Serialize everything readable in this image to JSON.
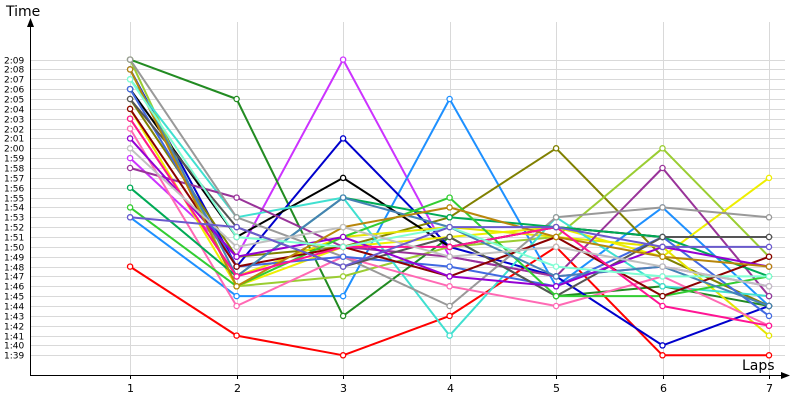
{
  "chart_data": {
    "type": "line",
    "ylabel": "Time",
    "xlabel": "Laps",
    "x": [
      1,
      2,
      3,
      4,
      5,
      6,
      7
    ],
    "xlim": [
      0.06,
      7.15
    ],
    "ylim_seconds": [
      97,
      132
    ],
    "y_ticks": [
      "1:39",
      "1:40",
      "1:41",
      "1:42",
      "1:43",
      "1:44",
      "1:45",
      "1:46",
      "1:47",
      "1:48",
      "1:49",
      "1:50",
      "1:51",
      "1:52",
      "1:53",
      "1:54",
      "1:55",
      "1:56",
      "1:57",
      "1:58",
      "1:59",
      "2:00",
      "2:01",
      "2:02",
      "2:03",
      "2:04",
      "2:05",
      "2:06",
      "2:07",
      "2:08",
      "2:09"
    ],
    "grid": true,
    "series": [
      {
        "color": "#ff0000",
        "values": [
          "1:48",
          "1:41",
          "1:39",
          "1:43",
          "1:50",
          "1:39",
          "1:39"
        ]
      },
      {
        "color": "#cc33ff",
        "values": [
          "1:59",
          "1:49",
          "2:09",
          "1:49",
          "1:47",
          "1:48",
          "1:46"
        ]
      },
      {
        "color": "#1e90ff",
        "values": [
          "1:53",
          "1:45",
          "1:45",
          "2:05",
          "1:46",
          "1:54",
          "1:44"
        ]
      },
      {
        "color": "#228b22",
        "values": [
          "2:09",
          "2:05",
          "1:43",
          "1:51",
          "1:45",
          "1:46",
          "1:44"
        ]
      },
      {
        "color": "#0000cc",
        "values": [
          "2:08",
          "1:48",
          "2:01",
          "1:50",
          "1:47",
          "1:40",
          "1:44"
        ]
      },
      {
        "color": "#808000",
        "values": [
          "2:05",
          "1:49",
          "1:50",
          "1:53",
          "2:00",
          "1:49",
          "1:44"
        ]
      },
      {
        "color": "#000000",
        "values": [
          "2:06",
          "1:51",
          "1:57",
          "1:50",
          "1:52",
          "1:51",
          "1:51"
        ]
      },
      {
        "color": "#9acd32",
        "values": [
          "2:09",
          "1:46",
          "1:47",
          "1:50",
          "1:51",
          "2:00",
          "1:49"
        ]
      },
      {
        "color": "#e5e500",
        "values": [
          "2:03",
          "1:47",
          "1:51",
          "1:52",
          "1:51",
          "1:50",
          "1:41"
        ]
      },
      {
        "color": "#eeee00",
        "values": [
          "2:04",
          "1:46",
          "1:50",
          "1:51",
          "1:52",
          "1:49",
          "1:57"
        ]
      },
      {
        "color": "#40e0d0",
        "values": [
          "2:07",
          "1:53",
          "1:55",
          "1:41",
          "1:53",
          "1:46",
          "1:45"
        ]
      },
      {
        "color": "#993399",
        "values": [
          "1:58",
          "1:55",
          "1:50",
          "1:49",
          "1:47",
          "1:58",
          "1:45"
        ]
      },
      {
        "color": "#999999",
        "values": [
          "2:09",
          "1:53",
          "1:49",
          "1:44",
          "1:53",
          "1:54",
          "1:53"
        ]
      },
      {
        "color": "#ff69b4",
        "values": [
          "2:02",
          "1:44",
          "1:49",
          "1:46",
          "1:44",
          "1:47",
          "1:42"
        ]
      },
      {
        "color": "#00aa55",
        "values": [
          "1:56",
          "1:47",
          "1:55",
          "1:53",
          "1:52",
          "1:51",
          "1:47"
        ]
      },
      {
        "color": "#4169e1",
        "values": [
          "2:06",
          "1:48",
          "1:49",
          "1:48",
          "1:46",
          "1:51",
          "1:43"
        ]
      },
      {
        "color": "#555555",
        "values": [
          "2:05",
          "1:52",
          "1:48",
          "1:51",
          "1:45",
          "1:51",
          "1:51"
        ]
      },
      {
        "color": "#32cd32",
        "values": [
          "1:54",
          "1:46",
          "1:51",
          "1:55",
          "1:45",
          "1:45",
          "1:47"
        ]
      },
      {
        "color": "#8b0000",
        "values": [
          "2:04",
          "1:48",
          "1:50",
          "1:47",
          "1:51",
          "1:45",
          "1:49"
        ]
      },
      {
        "color": "#4682b4",
        "values": [
          "2:08",
          "1:47",
          "1:55",
          "1:52",
          "1:47",
          "1:48",
          "1:44"
        ]
      },
      {
        "color": "#9400d3",
        "values": [
          "2:01",
          "1:49",
          "1:51",
          "1:47",
          "1:46",
          "1:50",
          "1:48"
        ]
      },
      {
        "color": "#b8860b",
        "values": [
          "2:08",
          "1:46",
          "1:52",
          "1:54",
          "1:51",
          "1:49",
          "1:48"
        ]
      },
      {
        "color": "#ff1493",
        "values": [
          "2:03",
          "1:47",
          "1:50",
          "1:50",
          "1:52",
          "1:44",
          "1:42"
        ]
      },
      {
        "color": "#7fffd4",
        "values": [
          "2:07",
          "1:51",
          "1:50",
          "1:52",
          "1:48",
          "1:47",
          "1:47"
        ]
      },
      {
        "color": "#c0c0c0",
        "values": [
          "2:00",
          "1:50",
          "1:52",
          "1:49",
          "1:50",
          "1:48",
          "1:46"
        ]
      },
      {
        "color": "#6a5acd",
        "values": [
          "1:53",
          "1:52",
          "1:48",
          "1:52",
          "1:52",
          "1:50",
          "1:50"
        ]
      }
    ]
  }
}
